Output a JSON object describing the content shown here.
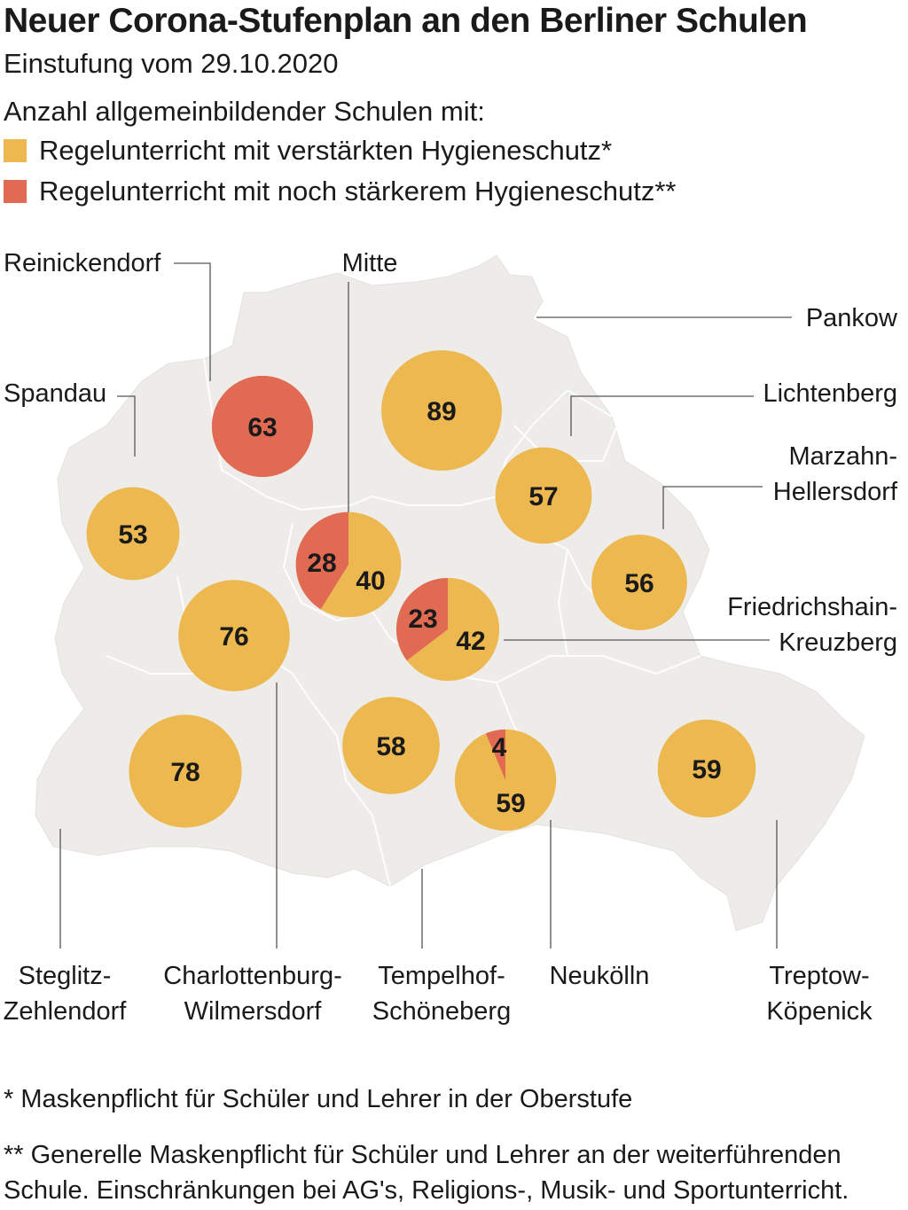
{
  "title": "Neuer Corona-Stufenplan an den Berliner Schulen",
  "subtitle": "Einstufung vom 29.10.2020",
  "intro": "Anzahl allgemeinbildender Schulen mit:",
  "legend": [
    {
      "label": "Regelunterricht mit verstärkten Hygieneschutz*",
      "color": "#ecb84f"
    },
    {
      "label": "Regelunterricht mit noch stärkerem Hygieneschutz**",
      "color": "#e06a52"
    }
  ],
  "colors": {
    "yellow": "#ecb84f",
    "red": "#e06a52",
    "map": "#eeece9"
  },
  "districts": [
    {
      "id": "reinickendorf",
      "name": [
        "Reinickendorf"
      ],
      "yellow": 0,
      "red": 63
    },
    {
      "id": "mitte",
      "name": [
        "Mitte"
      ],
      "yellow": 40,
      "red": 28
    },
    {
      "id": "pankow",
      "name": [
        "Pankow"
      ],
      "yellow": 89,
      "red": 0
    },
    {
      "id": "spandau",
      "name": [
        "Spandau"
      ],
      "yellow": 53,
      "red": 0
    },
    {
      "id": "lichtenberg",
      "name": [
        "Lichtenberg"
      ],
      "yellow": 57,
      "red": 0
    },
    {
      "id": "marzahn-hellersdorf",
      "name": [
        "Marzahn-",
        "Hellersdorf"
      ],
      "yellow": 56,
      "red": 0
    },
    {
      "id": "friedrichshain-kreuzberg",
      "name": [
        "Friedrichshain-",
        "Kreuzberg"
      ],
      "yellow": 42,
      "red": 23
    },
    {
      "id": "charlottenburg-wilmersdorf",
      "name": [
        "Charlottenburg-",
        "Wilmersdorf"
      ],
      "yellow": 76,
      "red": 0
    },
    {
      "id": "steglitz-zehlendorf",
      "name": [
        "Steglitz-",
        "Zehlendorf"
      ],
      "yellow": 78,
      "red": 0
    },
    {
      "id": "tempelhof-schoeneberg",
      "name": [
        "Tempelhof-",
        "Schöneberg"
      ],
      "yellow": 58,
      "red": 0
    },
    {
      "id": "neukoelln",
      "name": [
        "Neukölln"
      ],
      "yellow": 59,
      "red": 4
    },
    {
      "id": "treptow-koepenick",
      "name": [
        "Treptow-",
        "Köpenick"
      ],
      "yellow": 59,
      "red": 0
    }
  ],
  "footnotes": [
    "* Maskenpflicht für Schüler und Lehrer in der Oberstufe",
    "** Generelle Maskenpflicht für Schüler und Lehrer an der weiterführenden Schule. Einschränkungen bei AG's, Religions-, Musik- und Sportunterricht."
  ]
}
